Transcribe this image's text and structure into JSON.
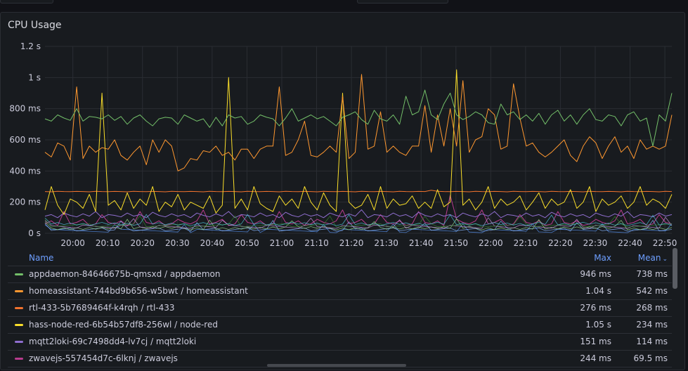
{
  "panel": {
    "title": "CPU Usage"
  },
  "chart_data": {
    "type": "line",
    "title": "CPU Usage",
    "y_unit": "ms",
    "ylim": [
      0,
      1200
    ],
    "yticks": [
      {
        "v": 0,
        "label": "0 s"
      },
      {
        "v": 200,
        "label": "200 ms"
      },
      {
        "v": 400,
        "label": "400 ms"
      },
      {
        "v": 600,
        "label": "600 ms"
      },
      {
        "v": 800,
        "label": "800 ms"
      },
      {
        "v": 1000,
        "label": "1 s"
      },
      {
        "v": 1200,
        "label": "1.2 s"
      }
    ],
    "xlim": [
      "19:52",
      "22:52"
    ],
    "xticks": [
      "20:00",
      "20:10",
      "20:20",
      "20:30",
      "20:40",
      "20:50",
      "21:00",
      "21:10",
      "21:20",
      "21:30",
      "21:40",
      "21:50",
      "22:00",
      "22:10",
      "22:20",
      "22:30",
      "22:40",
      "22:50"
    ],
    "grid": true,
    "legend_position": "bottom",
    "series": [
      {
        "name": "appdaemon-84646675b-qmsxd / appdaemon",
        "color": "#73bf69",
        "max": 946,
        "mean": 738,
        "values": [
          735,
          720,
          760,
          740,
          725,
          800,
          720,
          750,
          745,
          735,
          760,
          725,
          750,
          700,
          740,
          760,
          720,
          690,
          735,
          745,
          740,
          700,
          760,
          740,
          720,
          735,
          680,
          745,
          690,
          760,
          740,
          750,
          700,
          720,
          760,
          745,
          735,
          690,
          740,
          800,
          720,
          740,
          760,
          735,
          750,
          720,
          690,
          745,
          760,
          780,
          730,
          700,
          790,
          735,
          720,
          760,
          700,
          880,
          760,
          780,
          920,
          760,
          730,
          830,
          900,
          760,
          730,
          750,
          780,
          760,
          710,
          700,
          830,
          760,
          780,
          730,
          760,
          720,
          770,
          700,
          760,
          790,
          720,
          760,
          700,
          760,
          800,
          730,
          720,
          760,
          750,
          690,
          760,
          780,
          720,
          740,
          560,
          760,
          720,
          900
        ]
      },
      {
        "name": "homeassistant-744bd9b656-w5bwt / homeassistant",
        "color": "#ff9830",
        "max": 1040,
        "mean": 542,
        "values": [
          520,
          490,
          580,
          560,
          470,
          940,
          480,
          560,
          520,
          550,
          540,
          600,
          500,
          470,
          520,
          560,
          440,
          600,
          520,
          600,
          560,
          400,
          420,
          480,
          470,
          530,
          520,
          560,
          500,
          520,
          470,
          540,
          540,
          480,
          540,
          560,
          560,
          940,
          500,
          520,
          600,
          720,
          500,
          490,
          520,
          560,
          520,
          880,
          480,
          520,
          1020,
          540,
          560,
          780,
          520,
          560,
          520,
          500,
          560,
          560,
          820,
          520,
          760,
          560,
          800,
          560,
          980,
          520,
          600,
          620,
          800,
          760,
          540,
          560,
          960,
          740,
          560,
          580,
          520,
          490,
          520,
          560,
          600,
          500,
          460,
          560,
          620,
          580,
          480,
          560,
          620,
          520,
          560,
          480,
          600,
          540,
          560,
          540,
          560,
          760
        ]
      },
      {
        "name": "rtl-433-5b7689464f-k4rqh / rtl-433",
        "color": "#f2732e",
        "max": 276,
        "mean": 268,
        "values": [
          268,
          266,
          270,
          268,
          267,
          269,
          268,
          266,
          270,
          268,
          267,
          269,
          268,
          266,
          270,
          268,
          267,
          269,
          268,
          266,
          270,
          268,
          267,
          269,
          268,
          266,
          270,
          268,
          267,
          269,
          268,
          266,
          270,
          268,
          267,
          269,
          268,
          266,
          270,
          268,
          267,
          269,
          268,
          266,
          270,
          268,
          267,
          269,
          268,
          266,
          270,
          268,
          267,
          269,
          268,
          266,
          270,
          268,
          267,
          269,
          268,
          276,
          270,
          268,
          267,
          269,
          268,
          266,
          270,
          268,
          267,
          269,
          268,
          266,
          270,
          268,
          267,
          269,
          268,
          266,
          270,
          268,
          267,
          269,
          268,
          266,
          270,
          268,
          267,
          269,
          268,
          266,
          270,
          268,
          267,
          269,
          268,
          266,
          270,
          268
        ]
      },
      {
        "name": "hass-node-red-6b54b57df8-256wl / node-red",
        "color": "#fade2a",
        "max": 1050,
        "mean": 234,
        "values": [
          150,
          300,
          180,
          120,
          220,
          200,
          160,
          250,
          140,
          900,
          180,
          210,
          150,
          260,
          160,
          220,
          180,
          300,
          140,
          200,
          170,
          250,
          150,
          200,
          180,
          160,
          240,
          130,
          180,
          1000,
          160,
          220,
          150,
          300,
          190,
          160,
          140,
          240,
          180,
          220,
          160,
          300,
          200,
          150,
          260,
          180,
          140,
          900,
          200,
          160,
          180,
          250,
          150,
          300,
          160,
          220,
          180,
          190,
          240,
          160,
          200,
          160,
          280,
          170,
          200,
          1050,
          180,
          220,
          150,
          200,
          300,
          160,
          220,
          180,
          200,
          240,
          150,
          200,
          260,
          160,
          220,
          180,
          200,
          280,
          160,
          200,
          300,
          140,
          220,
          180,
          200,
          240,
          160,
          200,
          300,
          180,
          220,
          200,
          160,
          250
        ]
      },
      {
        "name": "mqtt2loki-69c7498dd4-lv7cj / mqtt2loki",
        "color": "#8f6ecf",
        "max": 151,
        "mean": 114,
        "values": [
          110,
          120,
          100,
          130,
          115,
          105,
          125,
          110,
          140,
          100,
          120,
          115,
          105,
          130,
          110,
          120,
          100,
          135,
          115,
          105,
          125,
          110,
          120,
          100,
          130,
          115,
          105,
          125,
          110,
          140,
          100,
          120,
          115,
          105,
          130,
          110,
          120,
          100,
          135,
          115,
          105,
          125,
          110,
          120,
          100,
          130,
          115,
          105,
          125,
          110,
          151,
          100,
          120,
          115,
          105,
          130,
          110,
          120,
          100,
          135,
          115,
          105,
          125,
          110,
          120,
          100,
          130,
          115,
          105,
          125,
          110,
          140,
          100,
          120,
          115,
          105,
          130,
          110,
          120,
          100,
          135,
          115,
          105,
          125,
          110,
          120,
          100,
          130,
          115,
          105,
          125,
          110,
          140,
          100,
          120,
          115,
          105,
          130,
          110,
          120
        ]
      },
      {
        "name": "zwavejs-557454d7c-6lknj / zwavejs",
        "color": "#b83c8e",
        "max": 244,
        "mean": 69.5,
        "values": [
          60,
          80,
          50,
          140,
          60,
          70,
          90,
          50,
          60,
          120,
          70,
          60,
          80,
          50,
          60,
          140,
          70,
          60,
          80,
          50,
          60,
          90,
          70,
          60,
          80,
          150,
          60,
          70,
          90,
          50,
          60,
          120,
          70,
          60,
          80,
          50,
          60,
          140,
          70,
          60,
          80,
          50,
          60,
          90,
          70,
          60,
          80,
          150,
          60,
          70,
          90,
          50,
          60,
          120,
          70,
          60,
          80,
          50,
          60,
          140,
          70,
          60,
          80,
          50,
          244,
          90,
          70,
          60,
          80,
          150,
          60,
          70,
          90,
          50,
          60,
          120,
          70,
          60,
          80,
          50,
          60,
          140,
          70,
          60,
          80,
          50,
          60,
          90,
          70,
          60,
          80,
          150,
          60,
          70,
          90,
          50,
          60,
          120,
          70,
          60
        ]
      }
    ]
  },
  "legend": {
    "header": {
      "name": "Name",
      "max": "Max",
      "mean": "Mean"
    },
    "rows": [
      {
        "name": "appdaemon-84646675b-qmsxd / appdaemon",
        "max": "946 ms",
        "mean": "738 ms",
        "color": "#73bf69"
      },
      {
        "name": "homeassistant-744bd9b656-w5bwt / homeassistant",
        "max": "1.04 s",
        "mean": "542 ms",
        "color": "#ff9830"
      },
      {
        "name": "rtl-433-5b7689464f-k4rqh / rtl-433",
        "max": "276 ms",
        "mean": "268 ms",
        "color": "#f2732e"
      },
      {
        "name": "hass-node-red-6b54b57df8-256wl / node-red",
        "max": "1.05 s",
        "mean": "234 ms",
        "color": "#fade2a"
      },
      {
        "name": "mqtt2loki-69c7498dd4-lv7cj / mqtt2loki",
        "max": "151 ms",
        "mean": "114 ms",
        "color": "#8f6ecf"
      },
      {
        "name": "zwavejs-557454d7c-6lknj / zwavejs",
        "max": "244 ms",
        "mean": "69.5 ms",
        "color": "#b83c8e"
      }
    ]
  },
  "icons": {
    "sort": "chevron-down-icon"
  }
}
